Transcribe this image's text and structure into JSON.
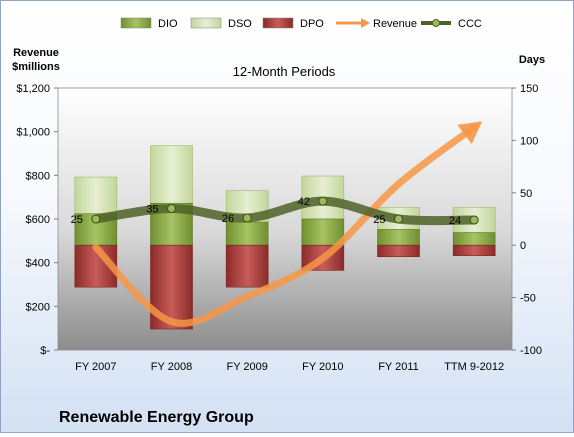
{
  "company": "Renewable Energy Group",
  "chart_data": {
    "type": "bar",
    "title": "12-Month Periods",
    "categories": [
      "FY 2007",
      "FY 2008",
      "FY 2009",
      "FY 2010",
      "FY 2011",
      "TTM 9-2012"
    ],
    "left_axis": {
      "label_line1": "Revenue",
      "label_line2": "$millions",
      "ylim": [
        0,
        1200
      ],
      "ticks": [
        "$-",
        "$200",
        "$400",
        "$600",
        "$800",
        "$1,000",
        "$1,200"
      ]
    },
    "right_axis": {
      "label": "Days",
      "ylim": [
        -100,
        150
      ],
      "ticks": [
        "-100",
        "-50",
        "0",
        "50",
        "100",
        "150"
      ]
    },
    "series": [
      {
        "name": "DIO",
        "axis": "right",
        "kind": "stacked-bar",
        "values": [
          30,
          40,
          22,
          25,
          15,
          12
        ],
        "color": "#9bbb59"
      },
      {
        "name": "DSO",
        "axis": "right",
        "kind": "stacked-bar",
        "values": [
          35,
          55,
          30,
          41,
          21,
          24
        ],
        "color": "#d7e4bd"
      },
      {
        "name": "DPO",
        "axis": "right",
        "kind": "negative-bar",
        "values": [
          -40,
          -80,
          -40,
          -24,
          -11,
          -10
        ],
        "color": "#c0504d"
      },
      {
        "name": "Revenue",
        "axis": "left",
        "kind": "line",
        "values": [
          470,
          130,
          245,
          420,
          760,
          1020
        ],
        "color": "#f79646"
      },
      {
        "name": "CCC",
        "axis": "right",
        "kind": "line",
        "values": [
          25,
          35,
          26,
          42,
          25,
          24
        ],
        "color": "#4f6228"
      }
    ],
    "ccc_labels": [
      "25",
      "35",
      "26",
      "42",
      "25",
      "24"
    ],
    "grid": false,
    "legend_position": "top"
  }
}
